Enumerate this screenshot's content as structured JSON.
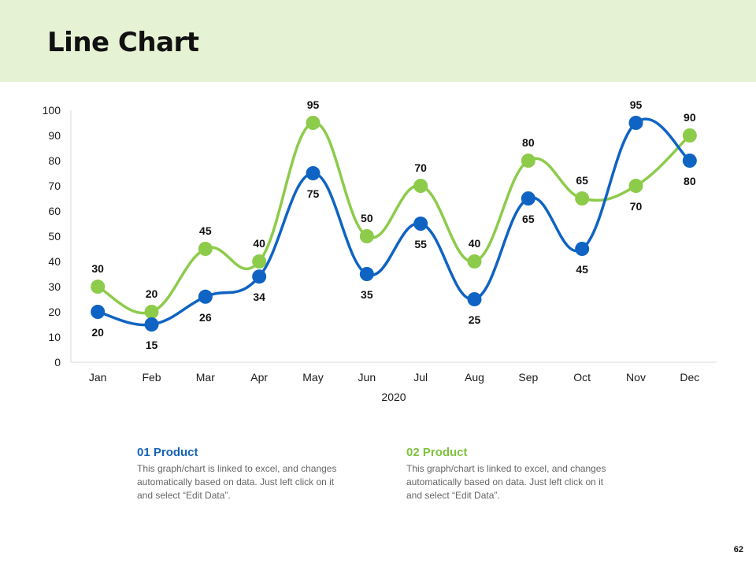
{
  "title": "Line Chart",
  "chart_data": {
    "type": "line",
    "categories": [
      "Jan",
      "Feb",
      "Mar",
      "Apr",
      "May",
      "Jun",
      "Jul",
      "Aug",
      "Sep",
      "Oct",
      "Nov",
      "Dec"
    ],
    "series": [
      {
        "name": "01 Product",
        "color": "#0f63c3",
        "values": [
          20,
          15,
          26,
          34,
          75,
          35,
          55,
          25,
          65,
          45,
          95,
          80
        ]
      },
      {
        "name": "02 Product",
        "color": "#8dcb4b",
        "values": [
          30,
          20,
          45,
          40,
          95,
          50,
          70,
          40,
          80,
          65,
          70,
          90
        ]
      }
    ],
    "xlabel": "2020",
    "ylabel": "",
    "ylim": [
      0,
      100
    ],
    "yticks": [
      0,
      10,
      20,
      30,
      40,
      50,
      60,
      70,
      80,
      90,
      100
    ],
    "smooth": true,
    "data_labels": true
  },
  "legend": [
    {
      "title": "01 Product",
      "color": "#1663b7",
      "text": "This graph/chart is linked to excel, and changes automatically based on data. Just left click on it and select “Edit Data”."
    },
    {
      "title": "02 Product",
      "color": "#7fc241",
      "text": "This graph/chart is linked to excel, and changes automatically based on data. Just left click on it and select “Edit Data”."
    }
  ],
  "page_number": "62"
}
